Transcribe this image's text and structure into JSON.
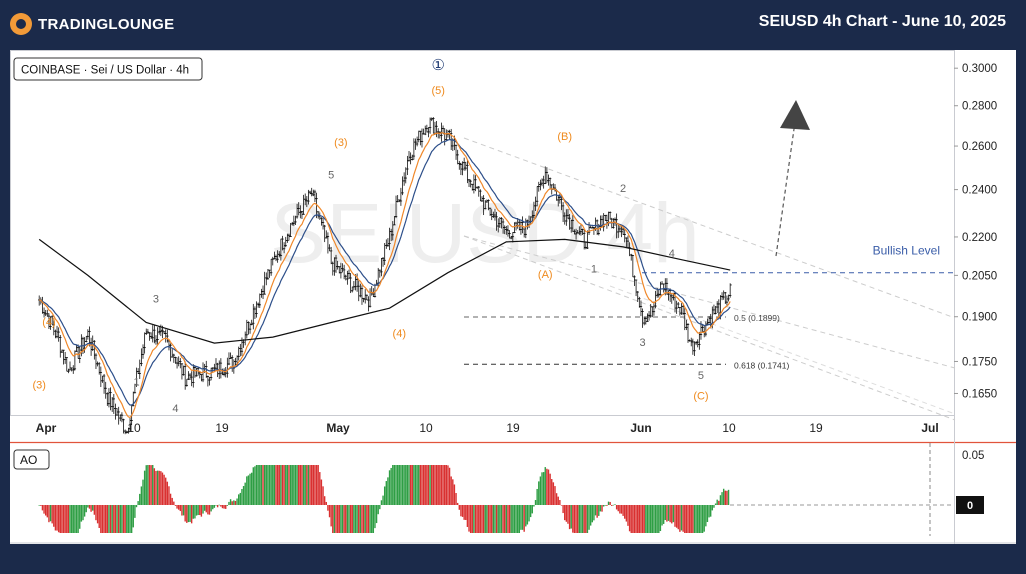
{
  "header": {
    "brand": "TradingLounge",
    "brand_display": "TRADINGLOUNGE",
    "title": "SEIUSD 4h Chart - June 10, 2025"
  },
  "colors": {
    "header_bg": "#1b2a4a",
    "ema_fast": "#f0882a",
    "ema_mid": "#2d4f8a",
    "sma_slow": "#111111",
    "wave_orange": "#ef8a1d",
    "wave_gray": "#666666",
    "ao_up": "#2e9e44",
    "ao_down": "#d93030",
    "bullish_level": "#3a5da8"
  },
  "chart_data": [
    {
      "type": "candlestick",
      "symbol_label": "COINBASE · Sei / US Dollar · 4h",
      "watermark": "SEIUSD 4h",
      "x_ticks": [
        "Apr",
        "10",
        "19",
        "May",
        "10",
        "19",
        "Jun",
        "10",
        "19",
        "Jul"
      ],
      "y_ticks": [
        "0.3000",
        "0.2800",
        "0.2600",
        "0.2400",
        "0.2200",
        "0.2050",
        "0.1900",
        "0.1750",
        "0.1650"
      ],
      "ylim": [
        0.1586,
        0.3102
      ],
      "y_scale": "log",
      "price_path": [
        {
          "date": "2025-03-31",
          "price": 0.196
        },
        {
          "date": "2025-04-02",
          "price": 0.182
        },
        {
          "date": "2025-04-03",
          "price": 0.172
        },
        {
          "date": "2025-04-05",
          "price": 0.184
        },
        {
          "date": "2025-04-07",
          "price": 0.164
        },
        {
          "date": "2025-04-09",
          "price": 0.154
        },
        {
          "date": "2025-04-11",
          "price": 0.185
        },
        {
          "date": "2025-04-13",
          "price": 0.182
        },
        {
          "date": "2025-04-15",
          "price": 0.17
        },
        {
          "date": "2025-04-18",
          "price": 0.172
        },
        {
          "date": "2025-04-20",
          "price": 0.175
        },
        {
          "date": "2025-04-22",
          "price": 0.192
        },
        {
          "date": "2025-04-24",
          "price": 0.21
        },
        {
          "date": "2025-04-26",
          "price": 0.226
        },
        {
          "date": "2025-04-28",
          "price": 0.238
        },
        {
          "date": "2025-04-30",
          "price": 0.21
        },
        {
          "date": "2025-05-02",
          "price": 0.202
        },
        {
          "date": "2025-05-04",
          "price": 0.196
        },
        {
          "date": "2025-05-06",
          "price": 0.22
        },
        {
          "date": "2025-05-08",
          "price": 0.256
        },
        {
          "date": "2025-05-10",
          "price": 0.272
        },
        {
          "date": "2025-05-12",
          "price": 0.264
        },
        {
          "date": "2025-05-14",
          "price": 0.246
        },
        {
          "date": "2025-05-16",
          "price": 0.232
        },
        {
          "date": "2025-05-18",
          "price": 0.222
        },
        {
          "date": "2025-05-20",
          "price": 0.224
        },
        {
          "date": "2025-05-22",
          "price": 0.248
        },
        {
          "date": "2025-05-24",
          "price": 0.23
        },
        {
          "date": "2025-05-26",
          "price": 0.218
        },
        {
          "date": "2025-05-28",
          "price": 0.228
        },
        {
          "date": "2025-05-30",
          "price": 0.224
        },
        {
          "date": "2025-06-01",
          "price": 0.19
        },
        {
          "date": "2025-06-02",
          "price": 0.192
        },
        {
          "date": "2025-06-03",
          "price": 0.202
        },
        {
          "date": "2025-06-05",
          "price": 0.192
        },
        {
          "date": "2025-06-06",
          "price": 0.18
        },
        {
          "date": "2025-06-08",
          "price": 0.19
        },
        {
          "date": "2025-06-10",
          "price": 0.199
        }
      ],
      "sma_slow": [
        {
          "date": "2025-03-31",
          "price": 0.219
        },
        {
          "date": "2025-04-05",
          "price": 0.205
        },
        {
          "date": "2025-04-11",
          "price": 0.188
        },
        {
          "date": "2025-04-18",
          "price": 0.181
        },
        {
          "date": "2025-04-24",
          "price": 0.183
        },
        {
          "date": "2025-04-30",
          "price": 0.188
        },
        {
          "date": "2025-05-06",
          "price": 0.193
        },
        {
          "date": "2025-05-12",
          "price": 0.206
        },
        {
          "date": "2025-05-18",
          "price": 0.218
        },
        {
          "date": "2025-05-24",
          "price": 0.219
        },
        {
          "date": "2025-05-30",
          "price": 0.216
        },
        {
          "date": "2025-06-05",
          "price": 0.211
        },
        {
          "date": "2025-06-10",
          "price": 0.207
        }
      ],
      "wave_labels": [
        {
          "text": "(4)",
          "date": "2025-04-01",
          "price": 0.187,
          "color": "orange"
        },
        {
          "text": "(3)",
          "date": "2025-03-31",
          "price": 0.1665,
          "color": "orange"
        },
        {
          "text": "3",
          "date": "2025-04-12",
          "price": 0.195,
          "color": "gray"
        },
        {
          "text": "1",
          "date": "2025-04-10",
          "price": 0.1675,
          "color": "gray"
        },
        {
          "text": "4",
          "date": "2025-04-14",
          "price": 0.1595,
          "color": "gray"
        },
        {
          "text": "5",
          "date": "2025-04-30",
          "price": 0.245,
          "color": "gray"
        },
        {
          "text": "(3)",
          "date": "2025-05-01",
          "price": 0.26,
          "color": "orange"
        },
        {
          "text": "(4)",
          "date": "2025-05-07",
          "price": 0.183,
          "color": "orange"
        },
        {
          "text": "(5)",
          "date": "2025-05-11",
          "price": 0.286,
          "color": "orange"
        },
        {
          "text": "①",
          "date": "2025-05-11",
          "price": 0.299,
          "color": "navy"
        },
        {
          "text": "(B)",
          "date": "2025-05-24",
          "price": 0.263,
          "color": "orange"
        },
        {
          "text": "(A)",
          "date": "2025-05-22",
          "price": 0.204,
          "color": "orange"
        },
        {
          "text": "1",
          "date": "2025-05-27",
          "price": 0.206,
          "color": "gray"
        },
        {
          "text": "2",
          "date": "2025-05-30",
          "price": 0.239,
          "color": "gray"
        },
        {
          "text": "4",
          "date": "2025-06-04",
          "price": 0.212,
          "color": "gray"
        },
        {
          "text": "3",
          "date": "2025-06-01",
          "price": 0.18,
          "color": "gray"
        },
        {
          "text": "5",
          "date": "2025-06-07",
          "price": 0.1695,
          "color": "gray"
        },
        {
          "text": "(C)",
          "date": "2025-06-07",
          "price": 0.1632,
          "color": "orange"
        }
      ],
      "levels": [
        {
          "label": "Bullish Level",
          "price": 0.206,
          "style": "dashed",
          "color": "blue"
        },
        {
          "label": "0.5 (0.1899)",
          "price": 0.1899,
          "style": "dashed",
          "color": "gray"
        },
        {
          "label": "0.618 (0.1741)",
          "price": 0.1741,
          "style": "dashed",
          "color": "black"
        }
      ],
      "grid": false
    },
    {
      "type": "bar",
      "indicator": "AO",
      "y_ticks": [
        "0.05",
        "0"
      ],
      "last_value_label": "0",
      "ylim": [
        -0.04,
        0.064
      ],
      "grid": false
    }
  ]
}
